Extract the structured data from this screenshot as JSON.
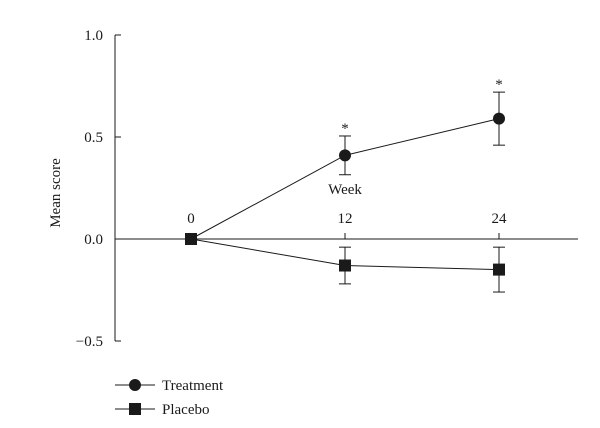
{
  "chart_data": {
    "type": "line",
    "title": "",
    "ylabel": "Mean score",
    "xlabel": "Week",
    "x": [
      0,
      12,
      24
    ],
    "x_tick_labels": [
      "0",
      "12",
      "24"
    ],
    "y_ticks": [
      1.0,
      0.5,
      0.0,
      -0.5
    ],
    "y_tick_labels": [
      "1.0",
      "0.5",
      "0.0",
      "−0.5"
    ],
    "ylim": [
      -0.5,
      1.0
    ],
    "grid": false,
    "legend_position": "bottom-left",
    "series": [
      {
        "name": "Treatment",
        "marker": "circle",
        "values": [
          0.0,
          0.41,
          0.59
        ],
        "error": [
          0.0,
          0.095,
          0.13
        ],
        "significance": [
          "",
          "*",
          "*"
        ]
      },
      {
        "name": "Placebo",
        "marker": "square",
        "values": [
          0.0,
          -0.13,
          -0.15
        ],
        "error": [
          0.0,
          0.09,
          0.11
        ],
        "significance": [
          "",
          "",
          ""
        ]
      }
    ],
    "colors": {
      "line": "#1a1a1a",
      "marker": "#1a1a1a"
    }
  }
}
